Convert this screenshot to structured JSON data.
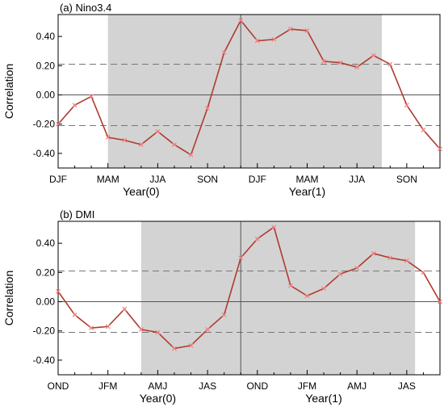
{
  "chart_data": [
    {
      "type": "line",
      "title": "(a) Nino3.4",
      "xlabel": "",
      "ylabel": "Correlation",
      "ylim": [
        -0.5,
        0.55
      ],
      "yticks": [
        0.4,
        0.2,
        0.0,
        -0.2,
        -0.4
      ],
      "ytick_labels": [
        "0.40",
        "0.20",
        "0.00",
        "-0.20",
        "-0.40"
      ],
      "xlim": [
        0,
        23
      ],
      "xticks": [
        0,
        3,
        6,
        9,
        12,
        15,
        18,
        21
      ],
      "xtick_labels": [
        "DJF",
        "MAM",
        "JJA",
        "SON",
        "DJF",
        "MAM",
        "JJA",
        "SON"
      ],
      "year_labels": [
        {
          "text": "Year(0)",
          "at": 5
        },
        {
          "text": "Year(1)",
          "at": 15
        }
      ],
      "shaded_x": [
        3,
        19.5
      ],
      "year_divider_x": 11,
      "threshold_lines": [
        0.21,
        -0.21
      ],
      "zero_line": 0.0,
      "line_color": "#b03a2e",
      "marker_color": "#f08080",
      "shade_color": "#d3d3d3",
      "x": [
        0,
        1,
        2,
        3,
        4,
        5,
        6,
        7,
        8,
        9,
        10,
        11,
        12,
        13,
        14,
        15,
        16,
        17,
        18,
        19,
        20,
        21,
        22,
        23
      ],
      "values": [
        -0.2,
        -0.07,
        -0.01,
        -0.29,
        -0.31,
        -0.34,
        -0.25,
        -0.34,
        -0.41,
        -0.09,
        0.29,
        0.51,
        0.37,
        0.38,
        0.45,
        0.44,
        0.23,
        0.22,
        0.19,
        0.27,
        0.21,
        -0.07,
        -0.24,
        -0.37
      ]
    },
    {
      "type": "line",
      "title": "(b) DMI",
      "xlabel": "",
      "ylabel": "Correlation",
      "ylim": [
        -0.5,
        0.55
      ],
      "yticks": [
        0.4,
        0.2,
        0.0,
        -0.2,
        -0.4
      ],
      "ytick_labels": [
        "0.40",
        "0.20",
        "0.00",
        "-0.20",
        "-0.40"
      ],
      "xlim": [
        0,
        23
      ],
      "xticks": [
        0,
        3,
        6,
        9,
        12,
        15,
        18,
        21
      ],
      "xtick_labels": [
        "OND",
        "JFM",
        "AMJ",
        "JAS",
        "OND",
        "JFM",
        "AMJ",
        "JAS"
      ],
      "year_labels": [
        {
          "text": "Year(0)",
          "at": 6
        },
        {
          "text": "Year(1)",
          "at": 16
        }
      ],
      "shaded_x": [
        5,
        21.5
      ],
      "year_divider_x": 11,
      "threshold_lines": [
        0.21,
        -0.21
      ],
      "zero_line": 0.0,
      "line_color": "#b03a2e",
      "marker_color": "#f08080",
      "shade_color": "#d3d3d3",
      "x": [
        0,
        1,
        2,
        3,
        4,
        5,
        6,
        7,
        8,
        9,
        10,
        11,
        12,
        13,
        14,
        15,
        16,
        17,
        18,
        19,
        20,
        21,
        22,
        23
      ],
      "values": [
        0.07,
        -0.09,
        -0.18,
        -0.17,
        -0.05,
        -0.19,
        -0.21,
        -0.32,
        -0.3,
        -0.19,
        -0.09,
        0.3,
        0.43,
        0.51,
        0.11,
        0.04,
        0.09,
        0.19,
        0.23,
        0.33,
        0.3,
        0.28,
        0.2,
        0.0
      ]
    }
  ]
}
